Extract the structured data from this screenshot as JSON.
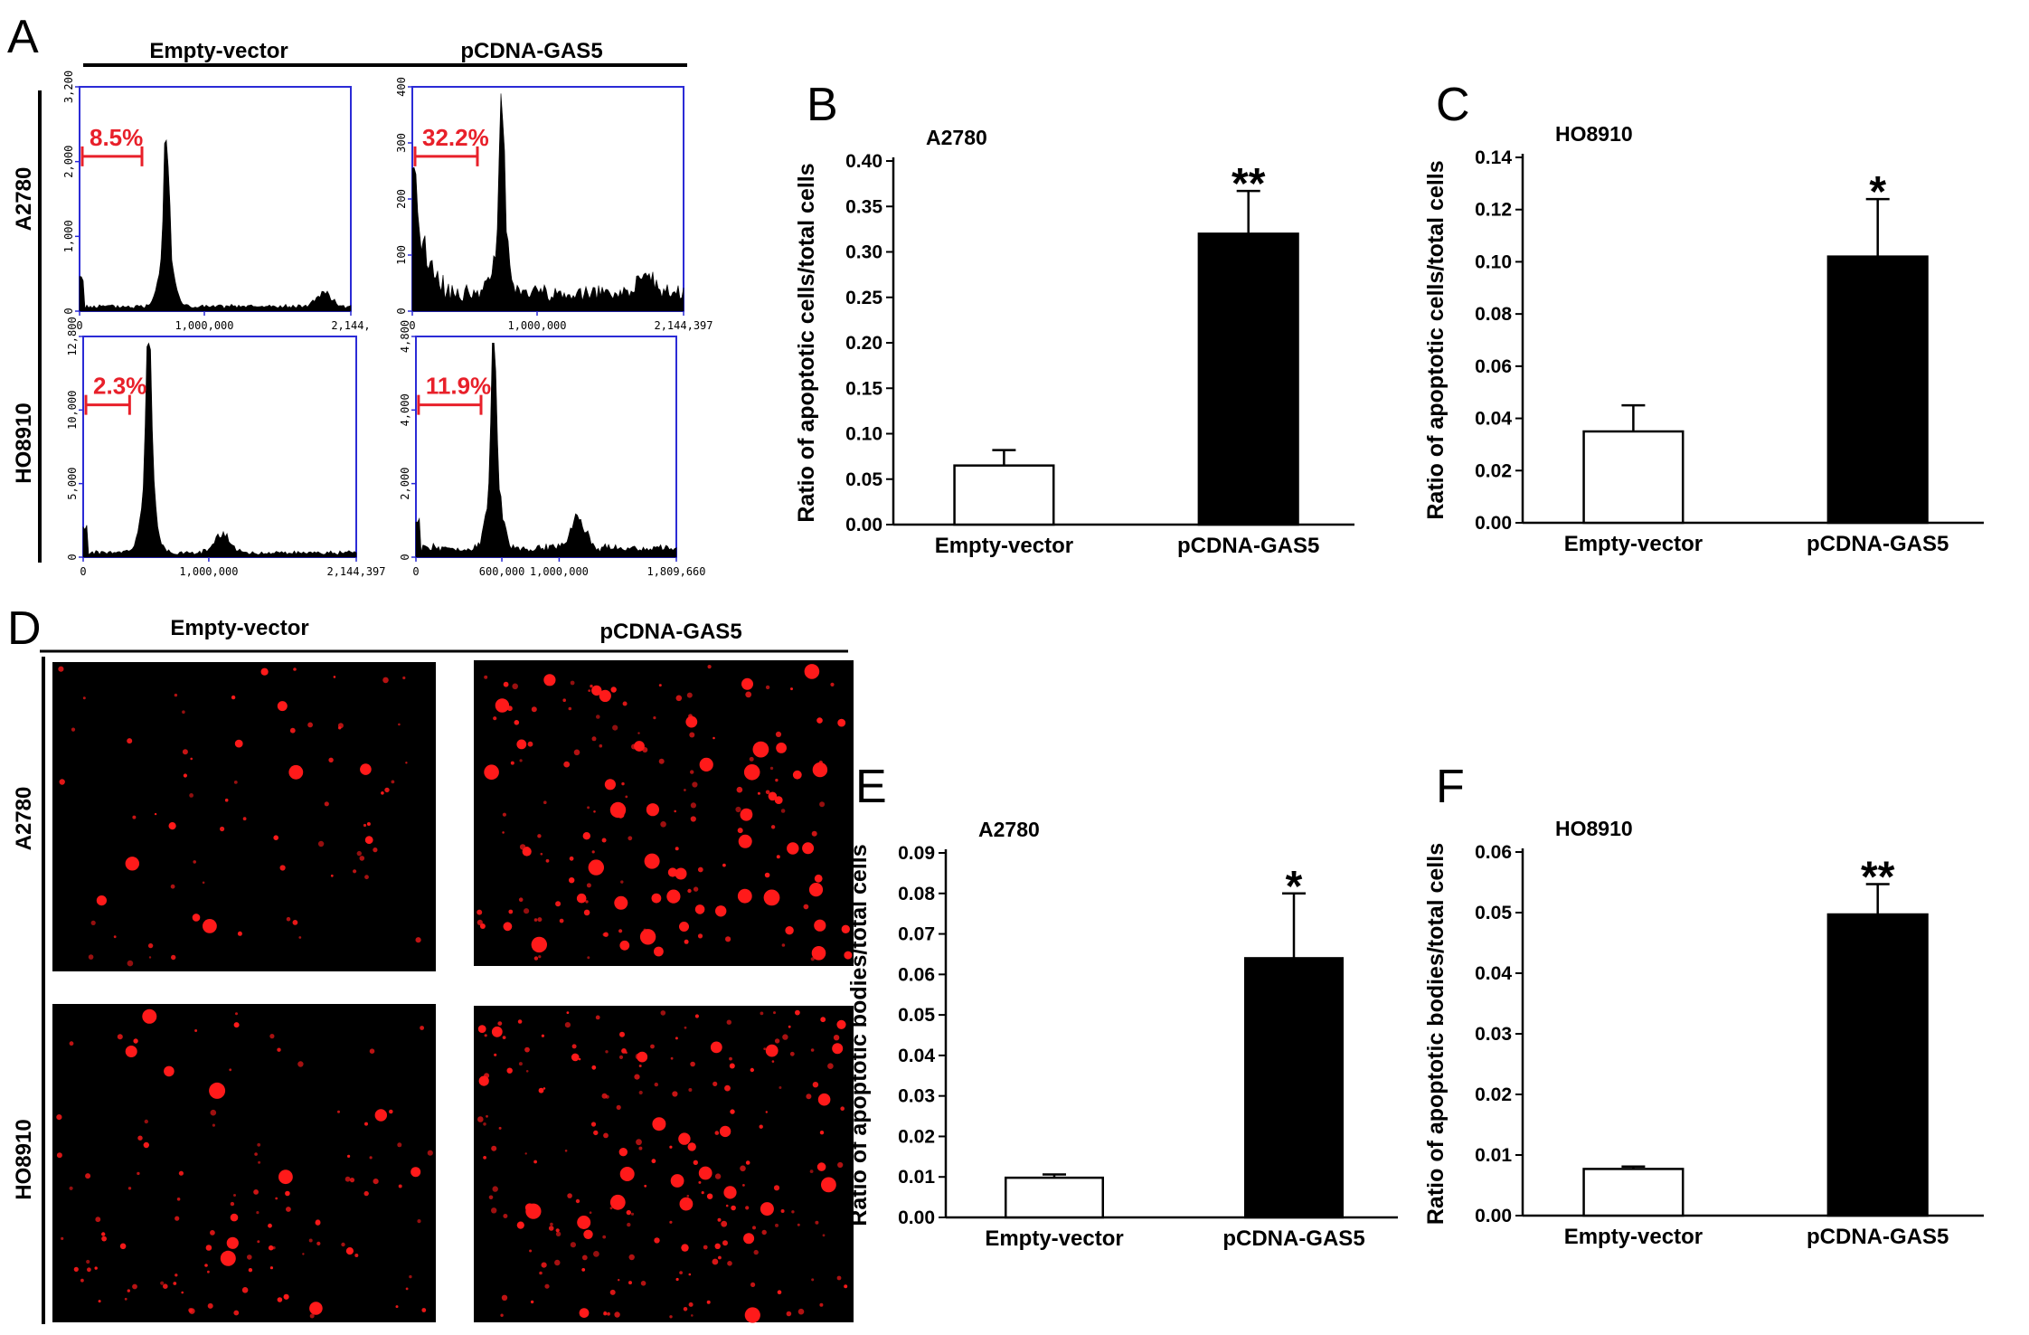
{
  "panels": {
    "A": {
      "label": "A",
      "groups": [
        "Empty-vector",
        "pCDNA-GAS5"
      ],
      "rows": [
        "A2780",
        "HO8910"
      ],
      "histograms": [
        {
          "row": "A2780",
          "group": "Empty-vector",
          "percent": "8.5%",
          "y_ticks": [
            "0",
            "1,000",
            "2,000",
            "3,200"
          ],
          "x_ticks": [
            "0",
            "1,000,000",
            "2,144,"
          ]
        },
        {
          "row": "A2780",
          "group": "pCDNA-GAS5",
          "percent": "32.2%",
          "y_ticks": [
            "0",
            "100",
            "200",
            "300",
            "400"
          ],
          "x_ticks": [
            "0",
            "1,000,000",
            "2,144,397"
          ]
        },
        {
          "row": "HO8910",
          "group": "Empty-vector",
          "percent": "2.3%",
          "y_ticks": [
            "0",
            "5,000",
            "10,000",
            "12,800"
          ],
          "x_ticks": [
            "0",
            "1,000,000",
            "2,144,397"
          ]
        },
        {
          "row": "HO8910",
          "group": "pCDNA-GAS5",
          "percent": "11.9%",
          "y_ticks": [
            "0",
            "2,000",
            "4,000",
            "4,800"
          ],
          "x_ticks": [
            "0",
            "600,000",
            "1,000,000",
            "1,809,660"
          ]
        }
      ]
    },
    "D": {
      "label": "D",
      "groups": [
        "Empty-vector",
        "pCDNA-GAS5"
      ],
      "rows": [
        "A2780",
        "HO8910"
      ]
    }
  },
  "colors": {
    "fc_axis": "#2b2bd6",
    "fc_marker": "#e8202a",
    "fluorescence": "#ff1a1a",
    "bar_control": "#ffffff",
    "bar_treatment": "#000000"
  },
  "chart_data": [
    {
      "panel": "B",
      "type": "bar",
      "title": "A2780",
      "categories": [
        "Empty-vector",
        "pCDNA-GAS5"
      ],
      "values": [
        0.065,
        0.32
      ],
      "errors": [
        0.017,
        0.047
      ],
      "significance": [
        "",
        "**"
      ],
      "ylabel": "Ratio of apoptotic cells/total cells",
      "ylim": [
        0,
        0.4
      ],
      "y_ticks": [
        "0.00",
        "0.05",
        "0.10",
        "0.15",
        "0.20",
        "0.25",
        "0.30",
        "0.35",
        "0.40"
      ]
    },
    {
      "panel": "C",
      "type": "bar",
      "title": "HO8910",
      "categories": [
        "Empty-vector",
        "pCDNA-GAS5"
      ],
      "values": [
        0.035,
        0.102
      ],
      "errors": [
        0.01,
        0.022
      ],
      "significance": [
        "",
        "*"
      ],
      "ylabel": "Ratio of apoptotic cells/total cells",
      "ylim": [
        0,
        0.14
      ],
      "y_ticks": [
        "0.00",
        "0.02",
        "0.04",
        "0.06",
        "0.08",
        "0.10",
        "0.12",
        "0.14"
      ]
    },
    {
      "panel": "E",
      "type": "bar",
      "title": "A2780",
      "categories": [
        "Empty-vector",
        "pCDNA-GAS5"
      ],
      "values": [
        0.0098,
        0.064
      ],
      "errors": [
        0.0008,
        0.016
      ],
      "significance": [
        "",
        "*"
      ],
      "ylabel": "Ratio of apoptotic bodies/total cells",
      "ylim": [
        0,
        0.09
      ],
      "y_ticks": [
        "0.00",
        "0.01",
        "0.02",
        "0.03",
        "0.04",
        "0.05",
        "0.06",
        "0.07",
        "0.08",
        "0.09"
      ]
    },
    {
      "panel": "F",
      "type": "bar",
      "title": "HO8910",
      "categories": [
        "Empty-vector",
        "pCDNA-GAS5"
      ],
      "values": [
        0.0077,
        0.0497
      ],
      "errors": [
        0.0004,
        0.005
      ],
      "significance": [
        "",
        "**"
      ],
      "ylabel": "Ratio of apoptotic bodies/total cells",
      "ylim": [
        0,
        0.06
      ],
      "y_ticks": [
        "0.00",
        "0.01",
        "0.02",
        "0.03",
        "0.04",
        "0.05",
        "0.06"
      ]
    }
  ]
}
